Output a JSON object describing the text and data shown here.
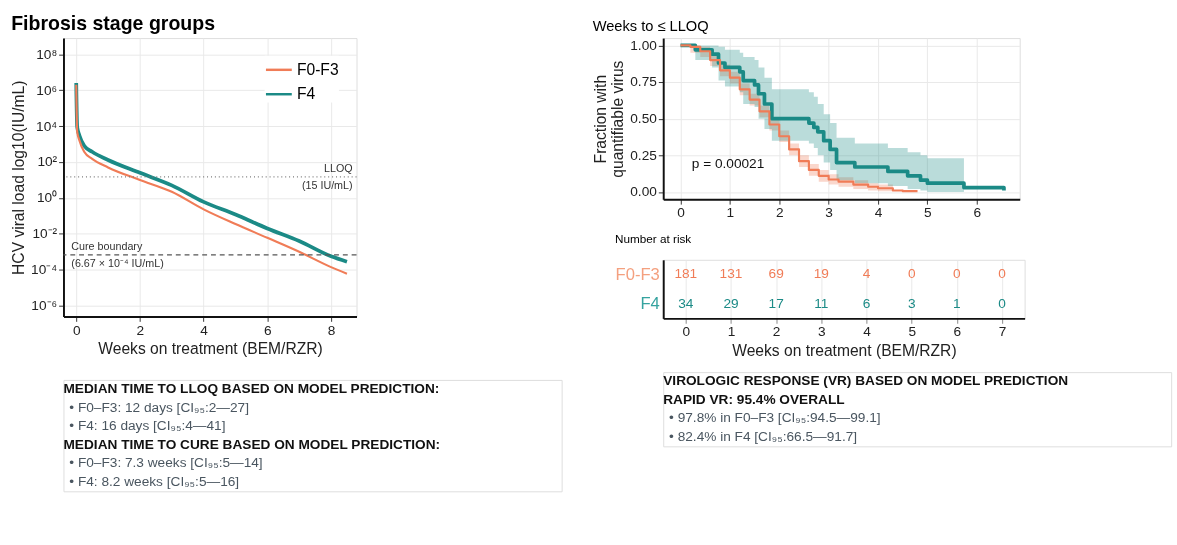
{
  "chart_data": [
    {
      "type": "line",
      "title": "Fibrosis stage groups",
      "xlabel": "Weeks on treatment (BEM/RZR)",
      "ylabel": "HCV viral load log10(IU/mL)",
      "log": "y",
      "x": [
        0,
        0.03,
        0.1,
        0.25,
        0.5,
        1,
        2,
        3,
        4,
        5,
        6,
        7,
        8,
        8.5
      ],
      "series": [
        {
          "name": "F0-F3",
          "color": "#f07c57",
          "values": [
            2000000,
            5000,
            1600,
            370,
            150,
            50,
            10,
            2.2,
            0.23,
            0.035,
            0.006,
            0.001,
            0.00014,
            6e-05
          ]
        },
        {
          "name": "F4",
          "color": "#1b8a86",
          "values": [
            2500000,
            9000,
            3000,
            800,
            370,
            130,
            25,
            5,
            0.6,
            0.12,
            0.02,
            0.004,
            0.00056,
            0.00028
          ]
        }
      ],
      "xlim": [
        -0.4,
        8.8
      ],
      "xticks": [
        0,
        2,
        4,
        6,
        8
      ],
      "ylim": [
        2.5e-07,
        800000000.0
      ],
      "yticks": [
        {
          "value": 1e-06,
          "label": "10⁻⁶"
        },
        {
          "value": 0.0001,
          "label": "10⁻⁴"
        },
        {
          "value": 0.01,
          "label": "10⁻²"
        },
        {
          "value": 1,
          "label": "10⁰"
        },
        {
          "value": 100,
          "label": "10²"
        },
        {
          "value": 10000,
          "label": "10⁴"
        },
        {
          "value": 1000000,
          "label": "10⁶"
        },
        {
          "value": 100000000,
          "label": "10⁸"
        }
      ],
      "ref_lines": [
        {
          "axis": "y",
          "value": 15,
          "label": "LLOQ\n(15 IU/mL)",
          "color": "#777777",
          "line_style": "dotted"
        },
        {
          "axis": "y",
          "value": 0.000667,
          "label": "Cure boundary\n(6.67 × 10⁻⁴ IU/mL)",
          "color": "#555555",
          "line_style": "dashed"
        }
      ],
      "grid": true,
      "legend": "top right",
      "line_style": "solid"
    },
    {
      "type": "step",
      "title": "Weeks to ≤ LLOQ",
      "ylabel": "Fraction with\nquantifiable virus",
      "series": [
        {
          "color": "#f07c57",
          "x": [
            0,
            0.2,
            0.4,
            0.6,
            0.8,
            1.0,
            1.2,
            1.4,
            1.6,
            1.8,
            2.0,
            2.2,
            2.4,
            2.6,
            2.8,
            3.0,
            3.2,
            3.5,
            3.8,
            4.0,
            4.3,
            4.5,
            4.8
          ],
          "values": [
            1,
            0.99,
            0.96,
            0.9,
            0.83,
            0.78,
            0.7,
            0.63,
            0.55,
            0.46,
            0.38,
            0.29,
            0.21,
            0.15,
            0.11,
            0.085,
            0.07,
            0.05,
            0.035,
            0.025,
            0.01,
            0.005,
            0.005
          ],
          "lower": [
            1,
            0.95,
            0.92,
            0.86,
            0.79,
            0.74,
            0.66,
            0.59,
            0.51,
            0.42,
            0.34,
            0.25,
            0.17,
            0.11,
            0.07,
            0.05,
            0.035,
            0.02,
            0.01,
            0.005,
            0.0,
            null,
            null
          ],
          "upper": [
            1,
            1,
            0.99,
            0.94,
            0.87,
            0.82,
            0.74,
            0.67,
            0.59,
            0.5,
            0.42,
            0.33,
            0.25,
            0.19,
            0.15,
            0.12,
            0.1,
            0.08,
            0.06,
            0.05,
            0.03,
            null,
            null
          ]
        },
        {
          "color": "#1b8a86",
          "x": [
            0,
            0.3,
            0.64,
            0.77,
            0.9,
            1.2,
            1.27,
            1.5,
            1.58,
            1.7,
            1.85,
            2.6,
            2.7,
            2.78,
            2.9,
            3.03,
            3.16,
            3.53,
            4.2,
            4.6,
            4.86,
            5.0,
            5.74,
            6.55
          ],
          "values": [
            1,
            0.97,
            0.94,
            0.88,
            0.85,
            0.82,
            0.76,
            0.73,
            0.67,
            0.6,
            0.5,
            0.47,
            0.44,
            0.41,
            0.35,
            0.29,
            0.2,
            0.17,
            0.14,
            0.11,
            0.08,
            0.06,
            0.03,
            0.01
          ],
          "lower": [
            1,
            0.9,
            0.85,
            0.76,
            0.72,
            0.68,
            0.6,
            0.58,
            0.5,
            0.43,
            0.35,
            0.33,
            0.3,
            0.25,
            0.2,
            0.15,
            0.08,
            0.06,
            0.04,
            0.02,
            0.01,
            0.0,
            0.0,
            null
          ],
          "upper": [
            1,
            1,
            1,
            0.99,
            0.97,
            0.95,
            0.92,
            0.9,
            0.85,
            0.78,
            0.7,
            0.68,
            0.65,
            0.6,
            0.53,
            0.47,
            0.37,
            0.33,
            0.3,
            0.27,
            0.25,
            0.23,
            0.22,
            null
          ]
        }
      ],
      "xlim": [
        -0.35,
        6.87
      ],
      "xticks": [
        0,
        1,
        2,
        3,
        4,
        5,
        6
      ],
      "ylim": [
        -0.05,
        1.05
      ],
      "yticks": [
        {
          "value": 0,
          "label": "0.00"
        },
        {
          "value": 0.25,
          "label": "0.25"
        },
        {
          "value": 0.5,
          "label": "0.50"
        },
        {
          "value": 0.75,
          "label": "0.75"
        },
        {
          "value": 1,
          "label": "1.00"
        }
      ],
      "annotations": [
        "p = 0.00021"
      ],
      "grid": true
    },
    {
      "type": "heatmap",
      "title": "Number at risk",
      "xlabel": "Weeks on treatment (BEM/RZR)",
      "categories": [
        "0",
        "1",
        "2",
        "3",
        "4",
        "5",
        "6",
        "7"
      ],
      "y_categories": [
        "F0-F3",
        "F4"
      ],
      "cells": [
        [
          181,
          131,
          69,
          19,
          4,
          0,
          0,
          0
        ],
        [
          34,
          29,
          17,
          11,
          6,
          3,
          1,
          0
        ]
      ],
      "data_labels": true,
      "grid": "x"
    },
    {
      "type": "other",
      "annotations": [
        "MEDIAN TIME TO LLOQ BASED ON MODEL PREDICTION:",
        "• F0–F3:   12 days [CI₉₅:2—27]",
        "• F4:         16 days [CI₉₅:4—41]",
        "MEDIAN TIME TO CURE BASED ON MODEL PREDICTION:",
        "• F0–F3:   7.3 weeks [CI₉₅:5—14]",
        "• F4:         8.2 weeks [CI₉₅:5—16]"
      ]
    },
    {
      "type": "other",
      "annotations": [
        "VIROLOGIC RESPONSE (VR) BASED ON MODEL PREDICTION",
        "RAPID VR: 95.4% OVERALL",
        "• 97.8% in F0–F3 [CI₉₅:94.5—99.1]",
        "• 82.4% in F4 [CI₉₅:66.5—91.7]"
      ]
    }
  ]
}
